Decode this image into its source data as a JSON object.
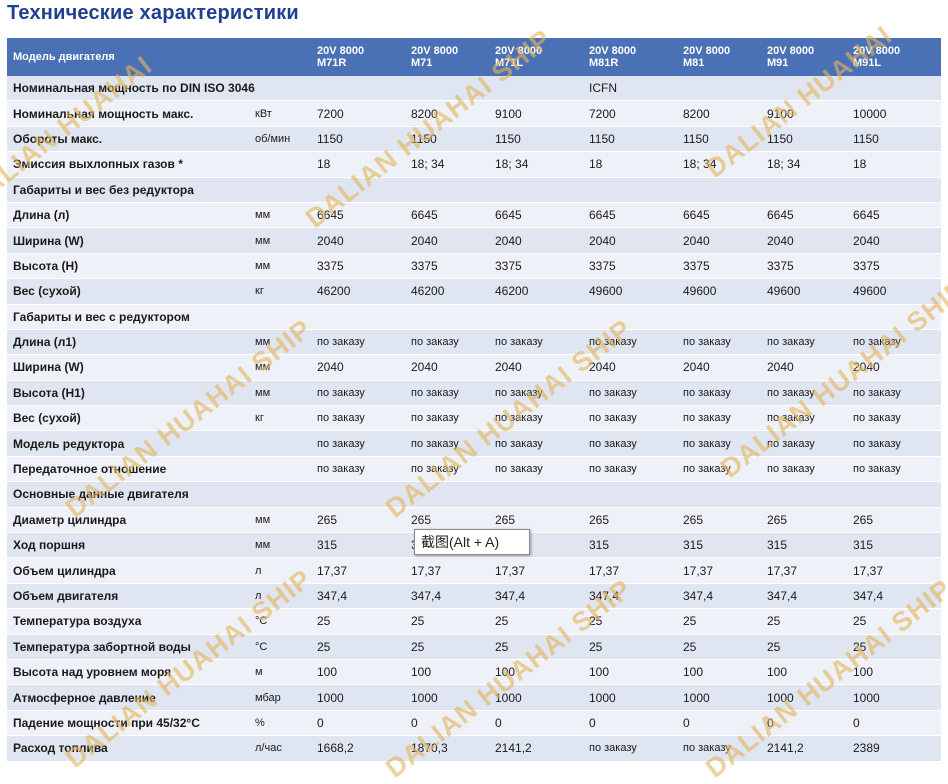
{
  "title": "Технические характеристики",
  "header": {
    "param_label": "Модель двигателя",
    "models": [
      {
        "line1": "20V 8000",
        "line2": "M71R"
      },
      {
        "line1": "20V 8000",
        "line2": "M71"
      },
      {
        "line1": "20V 8000",
        "line2": "M71L"
      },
      {
        "line1": "20V 8000",
        "line2": "M81R"
      },
      {
        "line1": "20V 8000",
        "line2": "M81"
      },
      {
        "line1": "20V 8000",
        "line2": "M91"
      },
      {
        "line1": "20V 8000",
        "line2": "M91L"
      }
    ]
  },
  "rows": [
    {
      "kind": "section",
      "label": "Номинальная мощность по DIN ISO 3046",
      "note": "ICFN"
    },
    {
      "kind": "data",
      "param": "Номинальная мощность макс.",
      "unit": "кВт",
      "values": [
        "7200",
        "8200",
        "9100",
        "7200",
        "8200",
        "9100",
        "10000"
      ]
    },
    {
      "kind": "data",
      "param": "Обороты макс.",
      "unit": "об/мин",
      "values": [
        "1150",
        "1150",
        "1150",
        "1150",
        "1150",
        "1150",
        "1150"
      ]
    },
    {
      "kind": "data",
      "param": "Эмиссия выхлопных газов *",
      "unit": "",
      "values": [
        "18",
        "18; 34",
        "18; 34",
        "18",
        "18; 34",
        "18; 34",
        "18"
      ]
    },
    {
      "kind": "section",
      "label": "Габариты и вес без редуктора",
      "note": ""
    },
    {
      "kind": "data",
      "param": "Длина (л)",
      "unit": "мм",
      "values": [
        "6645",
        "6645",
        "6645",
        "6645",
        "6645",
        "6645",
        "6645"
      ]
    },
    {
      "kind": "data",
      "param": "Ширина (W)",
      "unit": "мм",
      "values": [
        "2040",
        "2040",
        "2040",
        "2040",
        "2040",
        "2040",
        "2040"
      ]
    },
    {
      "kind": "data",
      "param": "Высота (H)",
      "unit": "мм",
      "values": [
        "3375",
        "3375",
        "3375",
        "3375",
        "3375",
        "3375",
        "3375"
      ]
    },
    {
      "kind": "data",
      "param": "Вес (сухой)",
      "unit": "кг",
      "values": [
        "46200",
        "46200",
        "46200",
        "49600",
        "49600",
        "49600",
        "49600"
      ]
    },
    {
      "kind": "section",
      "label": "Габариты и вес с редуктором",
      "note": ""
    },
    {
      "kind": "data",
      "param": "Длина (л1)",
      "unit": "мм",
      "values": [
        "по заказу",
        "по заказу",
        "по заказу",
        "по заказу",
        "по заказу",
        "по заказу",
        "по заказу"
      ]
    },
    {
      "kind": "data",
      "param": "Ширина (W)",
      "unit": "мм",
      "values": [
        "2040",
        "2040",
        "2040",
        "2040",
        "2040",
        "2040",
        "2040"
      ]
    },
    {
      "kind": "data",
      "param": "Высота (H1)",
      "unit": "мм",
      "values": [
        "по заказу",
        "по заказу",
        "по заказу",
        "по заказу",
        "по заказу",
        "по заказу",
        "по заказу"
      ]
    },
    {
      "kind": "data",
      "param": "Вес (сухой)",
      "unit": "кг",
      "values": [
        "по заказу",
        "по заказу",
        "по заказу",
        "по заказу",
        "по заказу",
        "по заказу",
        "по заказу"
      ]
    },
    {
      "kind": "data",
      "param": "Модель редуктора",
      "unit": "",
      "values": [
        "по заказу",
        "по заказу",
        "по заказу",
        "по заказу",
        "по заказу",
        "по заказу",
        "по заказу"
      ]
    },
    {
      "kind": "data",
      "param": "Передаточное отношение",
      "unit": "",
      "values": [
        "по заказу",
        "по заказу",
        "по заказу",
        "по заказу",
        "по заказу",
        "по заказу",
        "по заказу"
      ]
    },
    {
      "kind": "section",
      "label": "Основные данные двигателя",
      "note": ""
    },
    {
      "kind": "data",
      "param": "Диаметр цилиндра",
      "unit": "мм",
      "values": [
        "265",
        "265",
        "265",
        "265",
        "265",
        "265",
        "265"
      ]
    },
    {
      "kind": "data",
      "param": "Ход поршня",
      "unit": "мм",
      "values": [
        "315",
        "315",
        "315",
        "315",
        "315",
        "315",
        "315"
      ]
    },
    {
      "kind": "data",
      "param": "Объем цилиндра",
      "unit": "л",
      "values": [
        "17,37",
        "17,37",
        "17,37",
        "17,37",
        "17,37",
        "17,37",
        "17,37"
      ]
    },
    {
      "kind": "data",
      "param": "Объем двигателя",
      "unit": "л",
      "values": [
        "347,4",
        "347,4",
        "347,4",
        "347,4",
        "347,4",
        "347,4",
        "347,4"
      ]
    },
    {
      "kind": "data",
      "param": "Температура воздуха",
      "unit": "°C",
      "values": [
        "25",
        "25",
        "25",
        "25",
        "25",
        "25",
        "25"
      ]
    },
    {
      "kind": "data",
      "param": "Температура забортной воды",
      "unit": "°C",
      "values": [
        "25",
        "25",
        "25",
        "25",
        "25",
        "25",
        "25"
      ]
    },
    {
      "kind": "data",
      "param": "Высота над уровнем моря",
      "unit": "м",
      "values": [
        "100",
        "100",
        "100",
        "100",
        "100",
        "100",
        "100"
      ]
    },
    {
      "kind": "data",
      "param": "Атмосферное давление",
      "unit": "мбар",
      "values": [
        "1000",
        "1000",
        "1000",
        "1000",
        "1000",
        "1000",
        "1000"
      ]
    },
    {
      "kind": "data",
      "param": "Падение мощности при 45/32°C",
      "unit": "%",
      "values": [
        "0",
        "0",
        "0",
        "0",
        "0",
        "0",
        "0"
      ]
    },
    {
      "kind": "data",
      "param": "Расход топлива",
      "unit": "л/час",
      "values": [
        "1668,2",
        "1870,3",
        "2141,2",
        "по заказу",
        "по заказу",
        "2141,2",
        "2389"
      ]
    }
  ],
  "tooltip": "截图(Alt + A)",
  "watermarks": {
    "text_long": "DALIAN HUAHAI SHIP",
    "text_short": "DALIAN HUAHAI",
    "color": "#e4b55f"
  }
}
